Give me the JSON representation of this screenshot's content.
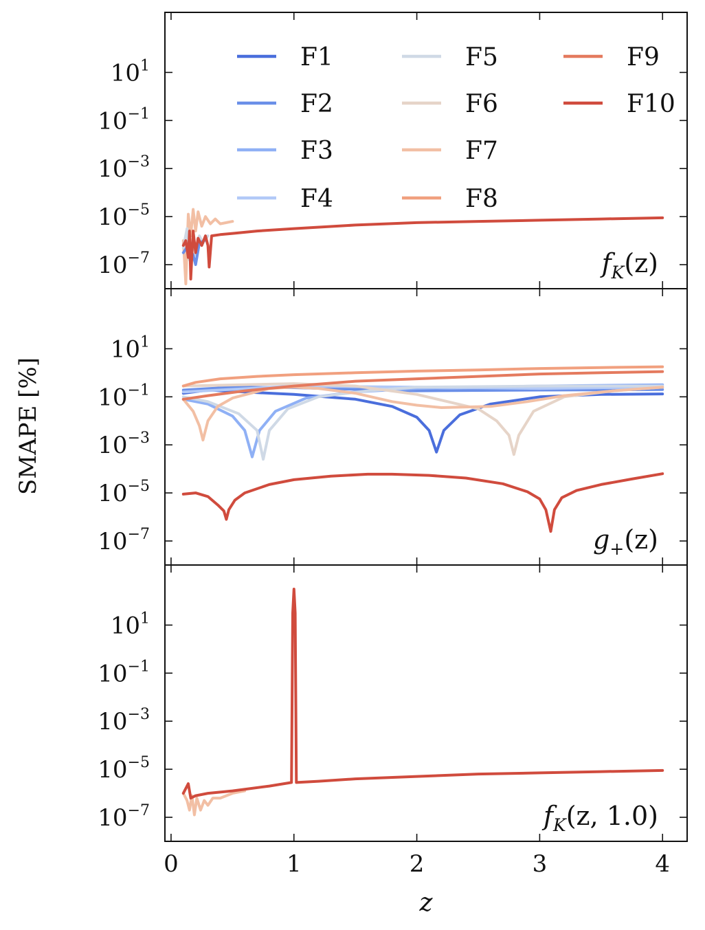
{
  "chart_data": {
    "type": "line",
    "shared_x": {
      "label": "z",
      "range": [
        -0.05,
        4.2
      ],
      "ticks": [
        0,
        1,
        2,
        3,
        4
      ],
      "tick_labels": [
        "0",
        "1",
        "2",
        "3",
        "4"
      ]
    },
    "ylabel": "SMAPE [%]",
    "y_scale": "log",
    "y_ticks": [
      {
        "exp": 1,
        "label": "10",
        "sup": "1"
      },
      {
        "exp": -1,
        "label": "10",
        "sup": "−1"
      },
      {
        "exp": -3,
        "label": "10",
        "sup": "−3"
      },
      {
        "exp": -5,
        "label": "10",
        "sup": "−5"
      },
      {
        "exp": -7,
        "label": "10",
        "sup": "−7"
      }
    ],
    "legend": {
      "placement": "top",
      "entries": [
        {
          "name": "F1",
          "color": "#4a6edc"
        },
        {
          "name": "F2",
          "color": "#6a8fe8"
        },
        {
          "name": "F3",
          "color": "#8fb0f5"
        },
        {
          "name": "F4",
          "color": "#b2c9f7"
        },
        {
          "name": "F5",
          "color": "#cfd9e6"
        },
        {
          "name": "F6",
          "color": "#e6d4c8"
        },
        {
          "name": "F7",
          "color": "#f2bfa4"
        },
        {
          "name": "F8",
          "color": "#f1a07f"
        },
        {
          "name": "F9",
          "color": "#e47a5e"
        },
        {
          "name": "F10",
          "color": "#d04b3d"
        }
      ]
    },
    "panels": [
      {
        "id": "fK",
        "annotation": {
          "main": "f",
          "sub": "K",
          "rest": "(z)"
        },
        "ylim_log10": [
          -8,
          3.5
        ],
        "series": [
          {
            "name": "F7",
            "points": [
              [
                0.1,
                -6.0
              ],
              [
                0.12,
                -7.8
              ],
              [
                0.14,
                -4.9
              ],
              [
                0.16,
                -5.8
              ],
              [
                0.18,
                -4.7
              ],
              [
                0.2,
                -5.6
              ],
              [
                0.22,
                -4.8
              ],
              [
                0.25,
                -5.4
              ],
              [
                0.28,
                -5.0
              ],
              [
                0.32,
                -5.3
              ],
              [
                0.36,
                -5.1
              ],
              [
                0.4,
                -5.3
              ],
              [
                0.45,
                -5.25
              ],
              [
                0.5,
                -5.2
              ]
            ]
          },
          {
            "name": "F5",
            "points": [
              [
                0.1,
                -6.3
              ],
              [
                0.13,
                -5.5
              ],
              [
                0.15,
                -6.8
              ],
              [
                0.18,
                -5.9
              ],
              [
                0.2,
                -6.6
              ],
              [
                0.23,
                -5.8
              ],
              [
                0.26,
                -6.1
              ],
              [
                0.3,
                -5.8
              ]
            ]
          },
          {
            "name": "F2",
            "points": [
              [
                0.1,
                -6.5
              ],
              [
                0.14,
                -6.2
              ],
              [
                0.18,
                -6.6
              ],
              [
                0.2,
                -7.0
              ],
              [
                0.23,
                -6.1
              ],
              [
                0.27,
                -6.0
              ]
            ]
          },
          {
            "name": "F10",
            "points": [
              [
                0.1,
                -6.2
              ],
              [
                0.12,
                -6.0
              ],
              [
                0.14,
                -6.7
              ],
              [
                0.15,
                -5.6
              ],
              [
                0.16,
                -7.6
              ],
              [
                0.18,
                -5.6
              ],
              [
                0.2,
                -6.5
              ],
              [
                0.22,
                -5.9
              ],
              [
                0.25,
                -6.2
              ],
              [
                0.28,
                -5.8
              ],
              [
                0.3,
                -6.2
              ],
              [
                0.31,
                -7.1
              ],
              [
                0.33,
                -5.8
              ],
              [
                0.4,
                -5.75
              ],
              [
                0.5,
                -5.7
              ],
              [
                0.7,
                -5.6
              ],
              [
                1.0,
                -5.5
              ],
              [
                1.5,
                -5.35
              ],
              [
                2.0,
                -5.25
              ],
              [
                2.5,
                -5.2
              ],
              [
                3.0,
                -5.15
              ],
              [
                3.5,
                -5.1
              ],
              [
                4.0,
                -5.05
              ]
            ]
          }
        ]
      },
      {
        "id": "gplus",
        "annotation": {
          "main": "g",
          "sub": "+",
          "rest": "(z)"
        },
        "ylim_log10": [
          -8,
          3.5
        ],
        "series": [
          {
            "name": "F1",
            "points": [
              [
                0.1,
                -0.85
              ],
              [
                0.3,
                -0.72
              ],
              [
                0.6,
                -0.8
              ],
              [
                1.0,
                -0.9
              ],
              [
                1.5,
                -1.1
              ],
              [
                1.8,
                -1.4
              ],
              [
                2.0,
                -1.85
              ],
              [
                2.1,
                -2.4
              ],
              [
                2.16,
                -3.3
              ],
              [
                2.22,
                -2.4
              ],
              [
                2.35,
                -1.75
              ],
              [
                2.6,
                -1.3
              ],
              [
                3.0,
                -1.0
              ],
              [
                3.5,
                -0.9
              ],
              [
                4.0,
                -0.88
              ]
            ]
          },
          {
            "name": "F2",
            "points": [
              [
                0.1,
                -0.72
              ],
              [
                0.5,
                -0.6
              ],
              [
                1.0,
                -0.62
              ],
              [
                2.0,
                -0.75
              ],
              [
                3.0,
                -0.72
              ],
              [
                4.0,
                -0.7
              ]
            ]
          },
          {
            "name": "F3",
            "points": [
              [
                0.1,
                -1.1
              ],
              [
                0.3,
                -1.3
              ],
              [
                0.5,
                -1.8
              ],
              [
                0.6,
                -2.4
              ],
              [
                0.66,
                -3.5
              ],
              [
                0.72,
                -2.4
              ],
              [
                0.85,
                -1.6
              ],
              [
                1.1,
                -1.05
              ],
              [
                1.5,
                -0.8
              ],
              [
                2.0,
                -0.65
              ],
              [
                3.0,
                -0.55
              ],
              [
                4.0,
                -0.5
              ]
            ]
          },
          {
            "name": "F4",
            "points": [
              [
                0.1,
                -0.8
              ],
              [
                1.0,
                -0.55
              ],
              [
                2.0,
                -0.6
              ],
              [
                3.0,
                -0.65
              ],
              [
                4.0,
                -0.6
              ]
            ]
          },
          {
            "name": "F5",
            "points": [
              [
                0.1,
                -1.0
              ],
              [
                0.3,
                -1.2
              ],
              [
                0.55,
                -1.7
              ],
              [
                0.7,
                -2.4
              ],
              [
                0.75,
                -3.6
              ],
              [
                0.8,
                -2.4
              ],
              [
                0.95,
                -1.5
              ],
              [
                1.2,
                -1.0
              ],
              [
                1.6,
                -0.75
              ],
              [
                2.0,
                -0.6
              ],
              [
                3.0,
                -0.55
              ],
              [
                4.0,
                -0.55
              ]
            ]
          },
          {
            "name": "F6",
            "points": [
              [
                0.1,
                -0.55
              ],
              [
                1.0,
                -0.45
              ],
              [
                1.5,
                -0.55
              ],
              [
                2.0,
                -0.9
              ],
              [
                2.5,
                -1.5
              ],
              [
                2.65,
                -2.0
              ],
              [
                2.75,
                -2.6
              ],
              [
                2.79,
                -3.4
              ],
              [
                2.83,
                -2.6
              ],
              [
                2.95,
                -1.6
              ],
              [
                3.2,
                -1.0
              ],
              [
                3.6,
                -0.75
              ],
              [
                4.0,
                -0.6
              ]
            ]
          },
          {
            "name": "F7",
            "points": [
              [
                0.1,
                -1.1
              ],
              [
                0.18,
                -1.6
              ],
              [
                0.23,
                -2.2
              ],
              [
                0.26,
                -2.8
              ],
              [
                0.3,
                -2.0
              ],
              [
                0.38,
                -1.4
              ],
              [
                0.5,
                -1.05
              ],
              [
                0.8,
                -0.65
              ],
              [
                1.0,
                -0.6
              ],
              [
                1.2,
                -0.65
              ],
              [
                1.5,
                -0.85
              ],
              [
                1.8,
                -1.2
              ],
              [
                2.0,
                -1.35
              ],
              [
                2.2,
                -1.45
              ],
              [
                2.6,
                -1.4
              ],
              [
                2.9,
                -1.2
              ],
              [
                3.2,
                -0.95
              ],
              [
                3.6,
                -0.75
              ],
              [
                4.0,
                -0.6
              ]
            ]
          },
          {
            "name": "F8",
            "points": [
              [
                0.1,
                -0.55
              ],
              [
                0.2,
                -0.4
              ],
              [
                0.4,
                -0.25
              ],
              [
                0.7,
                -0.15
              ],
              [
                1.0,
                -0.08
              ],
              [
                1.5,
                0.0
              ],
              [
                2.0,
                0.07
              ],
              [
                2.5,
                0.12
              ],
              [
                3.0,
                0.18
              ],
              [
                3.5,
                0.22
              ],
              [
                4.0,
                0.25
              ]
            ]
          },
          {
            "name": "F9",
            "points": [
              [
                0.1,
                -1.1
              ],
              [
                0.3,
                -0.95
              ],
              [
                0.6,
                -0.75
              ],
              [
                1.0,
                -0.55
              ],
              [
                1.5,
                -0.35
              ],
              [
                2.0,
                -0.25
              ],
              [
                2.5,
                -0.15
              ],
              [
                3.0,
                -0.05
              ],
              [
                3.5,
                0.0
              ],
              [
                4.0,
                0.05
              ]
            ]
          },
          {
            "name": "F10",
            "points": [
              [
                0.1,
                -5.05
              ],
              [
                0.2,
                -5.0
              ],
              [
                0.3,
                -5.15
              ],
              [
                0.38,
                -5.5
              ],
              [
                0.43,
                -5.75
              ],
              [
                0.45,
                -6.1
              ],
              [
                0.47,
                -5.7
              ],
              [
                0.52,
                -5.3
              ],
              [
                0.6,
                -5.0
              ],
              [
                0.8,
                -4.65
              ],
              [
                1.0,
                -4.45
              ],
              [
                1.3,
                -4.3
              ],
              [
                1.6,
                -4.22
              ],
              [
                1.8,
                -4.22
              ],
              [
                2.1,
                -4.27
              ],
              [
                2.4,
                -4.38
              ],
              [
                2.7,
                -4.62
              ],
              [
                2.9,
                -4.95
              ],
              [
                3.0,
                -5.25
              ],
              [
                3.05,
                -5.7
              ],
              [
                3.09,
                -6.6
              ],
              [
                3.12,
                -5.7
              ],
              [
                3.18,
                -5.2
              ],
              [
                3.3,
                -4.9
              ],
              [
                3.5,
                -4.65
              ],
              [
                3.75,
                -4.42
              ],
              [
                4.0,
                -4.2
              ]
            ]
          }
        ]
      },
      {
        "id": "fK1",
        "annotation": {
          "main": "f",
          "sub": "K",
          "rest": "(z, 1.0)"
        },
        "ylim_log10": [
          -8,
          3.5
        ],
        "series": [
          {
            "name": "F7",
            "points": [
              [
                0.1,
                -6.0
              ],
              [
                0.13,
                -6.3
              ],
              [
                0.15,
                -6.7
              ],
              [
                0.17,
                -6.1
              ],
              [
                0.19,
                -6.9
              ],
              [
                0.21,
                -6.2
              ],
              [
                0.24,
                -6.7
              ],
              [
                0.27,
                -6.3
              ],
              [
                0.3,
                -6.5
              ],
              [
                0.34,
                -6.2
              ],
              [
                0.4,
                -6.2
              ],
              [
                0.5,
                -6.0
              ],
              [
                0.6,
                -5.9
              ]
            ]
          },
          {
            "name": "F10",
            "points": [
              [
                0.1,
                -6.0
              ],
              [
                0.12,
                -5.8
              ],
              [
                0.14,
                -5.6
              ],
              [
                0.16,
                -6.2
              ],
              [
                0.2,
                -6.1
              ],
              [
                0.3,
                -6.0
              ],
              [
                0.5,
                -5.9
              ],
              [
                0.8,
                -5.7
              ],
              [
                0.98,
                -5.55
              ],
              [
                0.99,
                1.5
              ],
              [
                1.0,
                2.5
              ],
              [
                1.01,
                1.5
              ],
              [
                1.02,
                -5.55
              ],
              [
                1.2,
                -5.5
              ],
              [
                1.5,
                -5.4
              ],
              [
                2.0,
                -5.3
              ],
              [
                2.5,
                -5.2
              ],
              [
                3.0,
                -5.15
              ],
              [
                3.5,
                -5.1
              ],
              [
                4.0,
                -5.05
              ]
            ]
          }
        ]
      }
    ]
  }
}
